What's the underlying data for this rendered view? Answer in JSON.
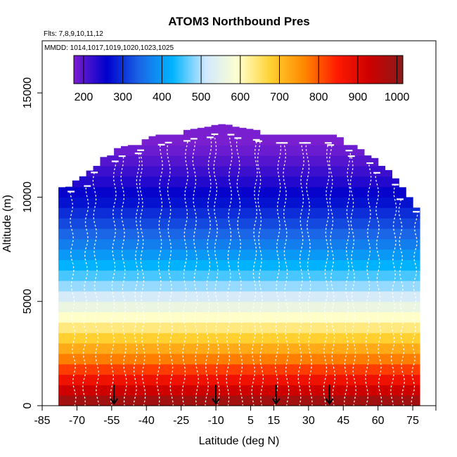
{
  "chart_data": {
    "type": "heatmap",
    "title": "ATOM3 Northbound Pres",
    "subtitle_flights": "Flts: 7,8,9,10,11,12",
    "subtitle_dates": "MMDD: 1014,1017,1019,1020,1023,1025",
    "xlabel": "Latitude (deg N)",
    "ylabel": "Altitude (m)",
    "xlim": [
      -85,
      85
    ],
    "ylim": [
      0,
      17500
    ],
    "x_ticks": [
      -85,
      -70,
      -55,
      -40,
      -25,
      -10,
      5,
      15,
      30,
      45,
      60,
      75
    ],
    "x_tick_labels": [
      "-85",
      "-70",
      "-55",
      "-40",
      "-25",
      "-10",
      "5",
      "15",
      "30",
      "45",
      "60",
      "75"
    ],
    "y_ticks": [
      0,
      5000,
      10000,
      15000
    ],
    "y_tick_labels": [
      "0",
      "5000",
      "10000",
      "15000"
    ],
    "colorbar": {
      "range": [
        175,
        1015
      ],
      "ticks": [
        200,
        300,
        400,
        500,
        600,
        700,
        800,
        900,
        1000
      ],
      "tick_labels": [
        "200",
        "300",
        "400",
        "500",
        "600",
        "700",
        "800",
        "900",
        "1000"
      ],
      "colors": [
        "#7a1fd0",
        "#0000cc",
        "#1a66e6",
        "#00b4ff",
        "#cfe8ff",
        "#ffffcc",
        "#ffd030",
        "#ff8800",
        "#ff1a00",
        "#cc0000",
        "#8b1a1a"
      ]
    },
    "coverage_ceiling": {
      "lat": [
        -78,
        -72,
        -66,
        -60,
        -54,
        -48,
        -42,
        -36,
        -30,
        -24,
        -18,
        -12,
        -7,
        -3,
        3,
        9,
        15,
        21,
        27,
        33,
        39,
        45,
        51,
        57,
        63,
        69,
        75,
        79
      ],
      "alt": [
        10200,
        10500,
        10900,
        11600,
        12100,
        12300,
        12500,
        12800,
        12900,
        13000,
        13100,
        13200,
        13400,
        13200,
        13100,
        13000,
        12900,
        12900,
        12900,
        12900,
        12900,
        12600,
        12200,
        11800,
        11300,
        10500,
        9600,
        9200
      ]
    },
    "flight_profiles_lat": [
      -71,
      -67,
      -61,
      -55,
      -49,
      -45,
      -41,
      -35,
      -29,
      -24,
      -18,
      -14,
      -9,
      -5,
      1,
      6,
      10,
      16,
      21,
      26,
      31,
      37,
      41,
      46,
      50,
      55,
      61,
      66,
      71,
      75
    ],
    "arrows_lat": [
      -54,
      -10,
      16,
      39
    ],
    "arrow_alt": 400
  }
}
